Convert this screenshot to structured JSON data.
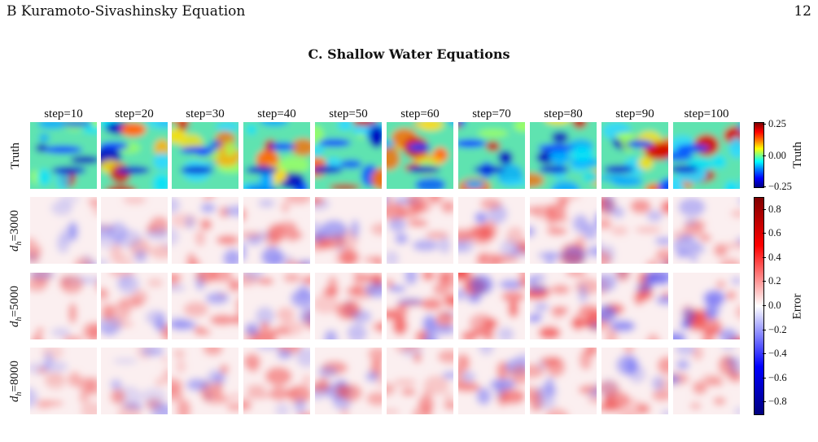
{
  "running_head": {
    "section": "B   Kuramoto-Sivashinsky Equation",
    "page": "12"
  },
  "section_title": "C.   Shallow Water Equations",
  "columns": [
    "step=10",
    "step=20",
    "step=30",
    "step=40",
    "step=50",
    "step=60",
    "step=70",
    "step=80",
    "step=90",
    "step=100"
  ],
  "rows": [
    {
      "key": "truth",
      "label": "Truth",
      "kind": "truth"
    },
    {
      "key": "dh3000",
      "symbol": "d",
      "subscript": "h",
      "value": "=3000",
      "kind": "error",
      "intensity": [
        0.25,
        0.35,
        0.5,
        0.55,
        0.55,
        0.6,
        0.6,
        0.65,
        0.65,
        0.45
      ]
    },
    {
      "key": "dh5000",
      "symbol": "d",
      "subscript": "h",
      "value": "=5000",
      "kind": "error",
      "intensity": [
        0.4,
        0.45,
        0.5,
        0.6,
        0.6,
        0.75,
        0.8,
        0.75,
        0.75,
        0.8
      ]
    },
    {
      "key": "dh8000",
      "symbol": "d",
      "subscript": "h",
      "value": "=8000",
      "kind": "error",
      "intensity": [
        0.3,
        0.35,
        0.4,
        0.45,
        0.45,
        0.5,
        0.5,
        0.5,
        0.5,
        0.5
      ]
    }
  ],
  "colorbars": {
    "truth": {
      "label": "Truth",
      "ticks": [
        "0.25",
        "0.00",
        "−0.25"
      ],
      "cmap": "jet"
    },
    "error": {
      "label": "Error",
      "ticks": [
        "0.8",
        "0.6",
        "0.4",
        "0.2",
        "0.0",
        "−0.2",
        "−0.4",
        "−0.6",
        "−0.8"
      ],
      "cmap": "seismic"
    }
  }
}
